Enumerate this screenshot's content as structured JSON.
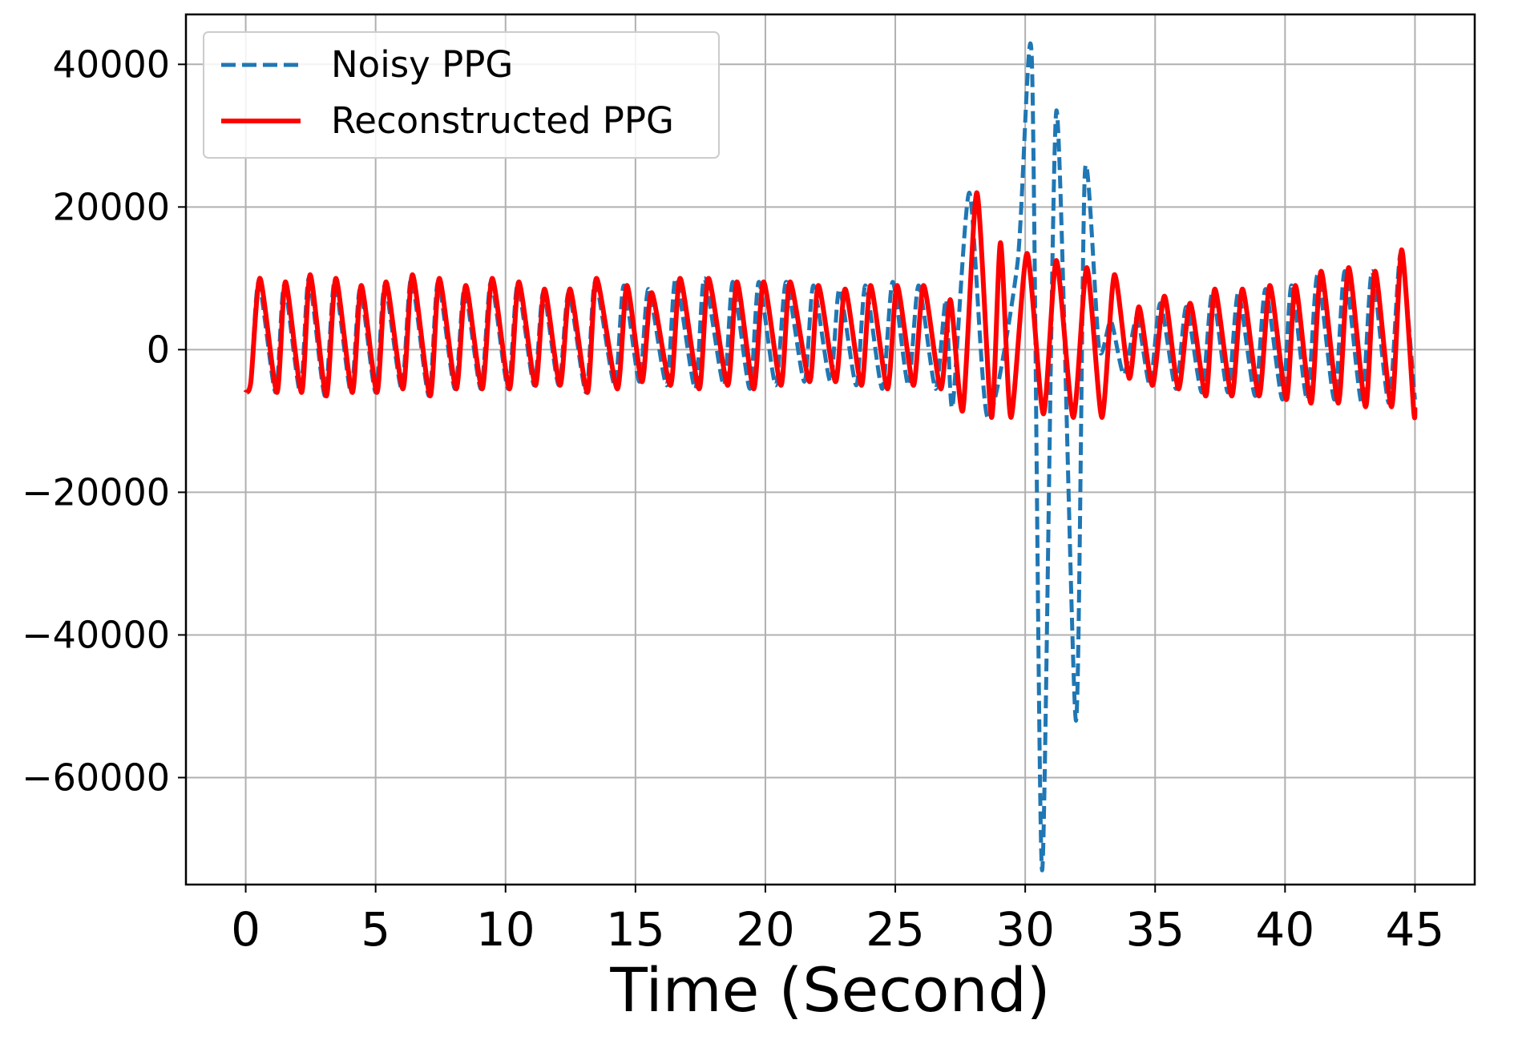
{
  "chart_data": {
    "type": "line",
    "title": "",
    "xlabel": "Time (Second)",
    "ylabel": "",
    "xlim": [
      -2.3,
      47.3
    ],
    "ylim": [
      -75000,
      47000
    ],
    "xticks": [
      0,
      5,
      10,
      15,
      20,
      25,
      30,
      35,
      40,
      45
    ],
    "xtick_labels": [
      "0",
      "5",
      "10",
      "15",
      "20",
      "25",
      "30",
      "35",
      "40",
      "45"
    ],
    "yticks": [
      40000,
      20000,
      0,
      -20000,
      -40000,
      -60000
    ],
    "ytick_labels": [
      "40000",
      "20000",
      "0",
      "−20000",
      "−40000",
      "−60000"
    ],
    "grid": true,
    "legend_position": "top-left",
    "series": [
      {
        "name": "Noisy PPG",
        "color": "#1f77b4",
        "style": "dashed",
        "points": [
          [
            0,
            -6000
          ],
          [
            0.2,
            -4500
          ],
          [
            0.5,
            9500
          ],
          [
            1.15,
            -6000
          ],
          [
            1.48,
            9000
          ],
          [
            2.1,
            -6000
          ],
          [
            2.43,
            10000
          ],
          [
            3.05,
            -6500
          ],
          [
            3.42,
            9500
          ],
          [
            4.05,
            -6000
          ],
          [
            4.4,
            8500
          ],
          [
            5.0,
            -6000
          ],
          [
            5.35,
            9000
          ],
          [
            6.0,
            -5500
          ],
          [
            6.37,
            10000
          ],
          [
            7.05,
            -6500
          ],
          [
            7.4,
            9500
          ],
          [
            8.05,
            -5500
          ],
          [
            8.42,
            8500
          ],
          [
            9.05,
            -5500
          ],
          [
            9.44,
            9500
          ],
          [
            10.1,
            -5500
          ],
          [
            10.46,
            9000
          ],
          [
            11.1,
            -5000
          ],
          [
            11.45,
            8000
          ],
          [
            12.05,
            -5000
          ],
          [
            12.43,
            8000
          ],
          [
            13.1,
            -6000
          ],
          [
            13.45,
            9500
          ],
          [
            14.2,
            -5000
          ],
          [
            14.55,
            9000
          ],
          [
            15.15,
            -4500
          ],
          [
            15.5,
            8500
          ],
          [
            16.2,
            -5000
          ],
          [
            16.55,
            10000
          ],
          [
            17.3,
            -5500
          ],
          [
            17.65,
            10000
          ],
          [
            18.4,
            -5000
          ],
          [
            18.75,
            9500
          ],
          [
            19.4,
            -5500
          ],
          [
            19.75,
            9500
          ],
          [
            20.4,
            -5000
          ],
          [
            20.8,
            9500
          ],
          [
            21.5,
            -4500
          ],
          [
            21.85,
            9000
          ],
          [
            22.5,
            -4500
          ],
          [
            22.85,
            8500
          ],
          [
            23.5,
            -5000
          ],
          [
            23.85,
            9000
          ],
          [
            24.5,
            -5500
          ],
          [
            24.9,
            9500
          ],
          [
            25.5,
            -5000
          ],
          [
            25.9,
            9000
          ],
          [
            26.55,
            -5500
          ],
          [
            26.95,
            7000
          ],
          [
            27.2,
            -8000
          ],
          [
            27.85,
            22000
          ],
          [
            28.55,
            -9500
          ],
          [
            29.7,
            12000
          ],
          [
            30.25,
            41000
          ],
          [
            30.65,
            -73000
          ],
          [
            31.2,
            33500
          ],
          [
            31.95,
            -52000
          ],
          [
            32.3,
            25000
          ],
          [
            32.85,
            0
          ],
          [
            33.3,
            4000
          ],
          [
            33.8,
            -3500
          ],
          [
            34.3,
            4500
          ],
          [
            34.8,
            -5000
          ],
          [
            35.2,
            6500
          ],
          [
            35.8,
            -5500
          ],
          [
            36.2,
            6000
          ],
          [
            36.8,
            -6000
          ],
          [
            37.2,
            8000
          ],
          [
            37.8,
            -6000
          ],
          [
            38.2,
            8000
          ],
          [
            38.85,
            -6500
          ],
          [
            39.25,
            8500
          ],
          [
            39.9,
            -7000
          ],
          [
            40.25,
            9000
          ],
          [
            40.85,
            -7000
          ],
          [
            41.25,
            10500
          ],
          [
            41.9,
            -7000
          ],
          [
            42.3,
            11000
          ],
          [
            42.95,
            -7500
          ],
          [
            43.35,
            11000
          ],
          [
            44.0,
            -7500
          ],
          [
            44.45,
            13500
          ],
          [
            45,
            -7000
          ]
        ]
      },
      {
        "name": "Reconstructed PPG",
        "color": "#ff0000",
        "style": "solid",
        "points": [
          [
            0,
            -6000
          ],
          [
            0.2,
            -4500
          ],
          [
            0.55,
            10000
          ],
          [
            1.2,
            -6000
          ],
          [
            1.53,
            9500
          ],
          [
            2.15,
            -6000
          ],
          [
            2.48,
            10500
          ],
          [
            3.1,
            -6500
          ],
          [
            3.47,
            10000
          ],
          [
            4.1,
            -6000
          ],
          [
            4.45,
            9000
          ],
          [
            5.05,
            -6000
          ],
          [
            5.4,
            9500
          ],
          [
            6.05,
            -5500
          ],
          [
            6.42,
            10500
          ],
          [
            7.1,
            -6500
          ],
          [
            7.45,
            10000
          ],
          [
            8.1,
            -5500
          ],
          [
            8.47,
            9000
          ],
          [
            9.1,
            -5500
          ],
          [
            9.49,
            10000
          ],
          [
            10.15,
            -5500
          ],
          [
            10.51,
            9500
          ],
          [
            11.15,
            -5000
          ],
          [
            11.5,
            8500
          ],
          [
            12.1,
            -5000
          ],
          [
            12.48,
            8500
          ],
          [
            13.15,
            -6000
          ],
          [
            13.5,
            10000
          ],
          [
            14.3,
            -5500
          ],
          [
            14.67,
            9000
          ],
          [
            15.25,
            -4500
          ],
          [
            15.62,
            8000
          ],
          [
            16.35,
            -5000
          ],
          [
            16.72,
            10000
          ],
          [
            17.45,
            -5500
          ],
          [
            17.81,
            10000
          ],
          [
            18.55,
            -5000
          ],
          [
            18.91,
            9500
          ],
          [
            19.55,
            -5500
          ],
          [
            19.93,
            9500
          ],
          [
            20.6,
            -5000
          ],
          [
            20.95,
            9500
          ],
          [
            21.7,
            -4500
          ],
          [
            22.04,
            9000
          ],
          [
            22.7,
            -4500
          ],
          [
            23.07,
            8500
          ],
          [
            23.7,
            -5000
          ],
          [
            24.05,
            9000
          ],
          [
            24.7,
            -5500
          ],
          [
            25.07,
            9000
          ],
          [
            25.7,
            -5000
          ],
          [
            26.09,
            9000
          ],
          [
            26.75,
            -5500
          ],
          [
            27.12,
            7000
          ],
          [
            27.6,
            -8500
          ],
          [
            28.14,
            22000
          ],
          [
            28.7,
            -9500
          ],
          [
            29.05,
            15000
          ],
          [
            29.45,
            -9500
          ],
          [
            30.07,
            13500
          ],
          [
            30.7,
            -9000
          ],
          [
            31.2,
            12500
          ],
          [
            31.85,
            -9500
          ],
          [
            32.37,
            11500
          ],
          [
            32.95,
            -9500
          ],
          [
            33.43,
            10500
          ],
          [
            34.0,
            -4000
          ],
          [
            34.38,
            6000
          ],
          [
            34.9,
            -5000
          ],
          [
            35.36,
            7500
          ],
          [
            35.9,
            -5500
          ],
          [
            36.35,
            6500
          ],
          [
            36.95,
            -6500
          ],
          [
            37.3,
            8500
          ],
          [
            37.95,
            -6500
          ],
          [
            38.36,
            8500
          ],
          [
            39.0,
            -6500
          ],
          [
            39.42,
            9000
          ],
          [
            40.05,
            -7000
          ],
          [
            40.4,
            9000
          ],
          [
            41.0,
            -7500
          ],
          [
            41.39,
            11000
          ],
          [
            42.05,
            -7500
          ],
          [
            42.45,
            11500
          ],
          [
            43.1,
            -8000
          ],
          [
            43.47,
            11000
          ],
          [
            44.1,
            -8000
          ],
          [
            44.49,
            14000
          ],
          [
            44.95,
            -8500
          ],
          [
            45,
            -8000
          ]
        ]
      }
    ]
  }
}
